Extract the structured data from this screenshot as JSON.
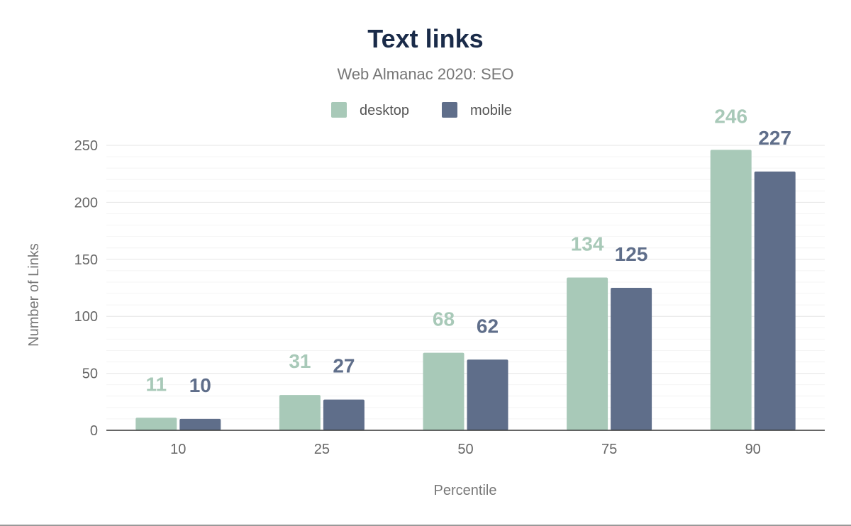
{
  "chart_data": {
    "type": "bar",
    "title": "Text links",
    "subtitle": "Web Almanac 2020: SEO",
    "xlabel": "Percentile",
    "ylabel": "Number of Links",
    "categories": [
      "10",
      "25",
      "50",
      "75",
      "90"
    ],
    "series": [
      {
        "name": "desktop",
        "color": "#a8c9b8",
        "values": [
          11,
          31,
          68,
          134,
          246
        ]
      },
      {
        "name": "mobile",
        "color": "#5f6e8a",
        "values": [
          10,
          27,
          62,
          125,
          227
        ]
      }
    ],
    "ylim": [
      0,
      250
    ],
    "yticks": [
      "0",
      "50",
      "100",
      "150",
      "200",
      "250"
    ],
    "grid": true,
    "legend": "top-center",
    "data_labels": true,
    "title_color": "#1a2b49"
  }
}
